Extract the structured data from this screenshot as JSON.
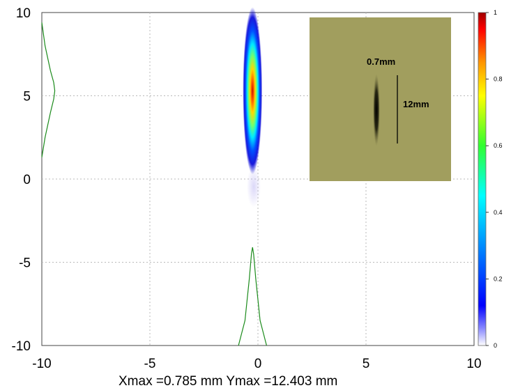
{
  "chart_data": {
    "type": "heatmap",
    "x_ticks": [
      "-10",
      "-5",
      "0",
      "5",
      "10"
    ],
    "y_ticks": [
      "10",
      "5",
      "0",
      "-5",
      "-10"
    ],
    "xlim": [
      -10,
      10
    ],
    "ylim": [
      -10,
      10
    ],
    "grid": true,
    "colorbar": {
      "ticks": [
        "1",
        "0.8",
        "0.6",
        "0.4",
        "0.2",
        "0"
      ],
      "range": [
        0,
        1
      ],
      "colormap": "jet"
    },
    "spot": {
      "center": [
        -0.25,
        5.3
      ],
      "fwhm_x_mm": 0.7,
      "fwhm_y_mm": 12
    },
    "profile_x": {
      "x": [
        -0.9,
        -0.6,
        -0.4,
        -0.3,
        -0.25,
        -0.2,
        -0.1,
        0.1,
        0.4
      ],
      "y": [
        -10,
        -8.5,
        -6.0,
        -4.5,
        -4.1,
        -4.5,
        -6.0,
        -8.5,
        -10
      ]
    },
    "profile_y": {
      "y": [
        9.4,
        8.0,
        6.5,
        5.8,
        5.3,
        4.8,
        4.0,
        2.5,
        1.3
      ],
      "x": [
        -10,
        -9.85,
        -9.6,
        -9.45,
        -9.4,
        -9.45,
        -9.6,
        -9.85,
        -10
      ]
    },
    "inset": {
      "width_label": "0.7mm",
      "height_label": "12mm"
    },
    "footer": "Xmax =0.785 mm   Ymax =12.403 mm"
  },
  "colors": {
    "profile": "#1a8a1a",
    "grid": "#b9b9b9",
    "inset_bg": "#a19e5e"
  }
}
